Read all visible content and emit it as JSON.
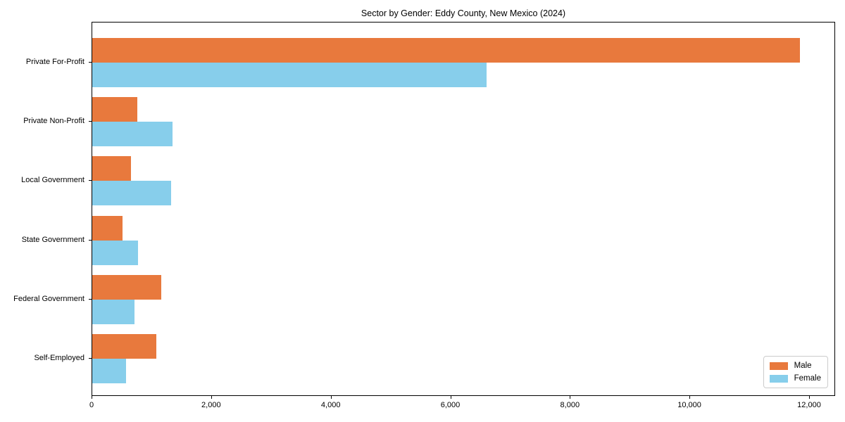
{
  "chart_data": {
    "type": "bar",
    "orientation": "horizontal",
    "title": "Sector by Gender: Eddy County, New Mexico (2024)",
    "categories": [
      "Private For-Profit",
      "Private Non-Profit",
      "Local Government",
      "State Government",
      "Federal Government",
      "Self-Employed"
    ],
    "series": [
      {
        "name": "Male",
        "color": "#e8793d",
        "values": [
          11840,
          750,
          650,
          510,
          1150,
          1070
        ]
      },
      {
        "name": "Female",
        "color": "#87ceeb",
        "values": [
          6600,
          1340,
          1320,
          760,
          710,
          560
        ]
      }
    ],
    "xlabel": "",
    "ylabel": "",
    "xlim": [
      0,
      12436
    ],
    "x_ticks": [
      0,
      2000,
      4000,
      6000,
      8000,
      10000,
      12000
    ],
    "x_tick_labels": [
      "0",
      "2,000",
      "4,000",
      "6,000",
      "8,000",
      "10,000",
      "12,000"
    ],
    "grid": false,
    "legend_position": "lower right",
    "background_color": "#ffffff",
    "spine_color": "#000000"
  }
}
